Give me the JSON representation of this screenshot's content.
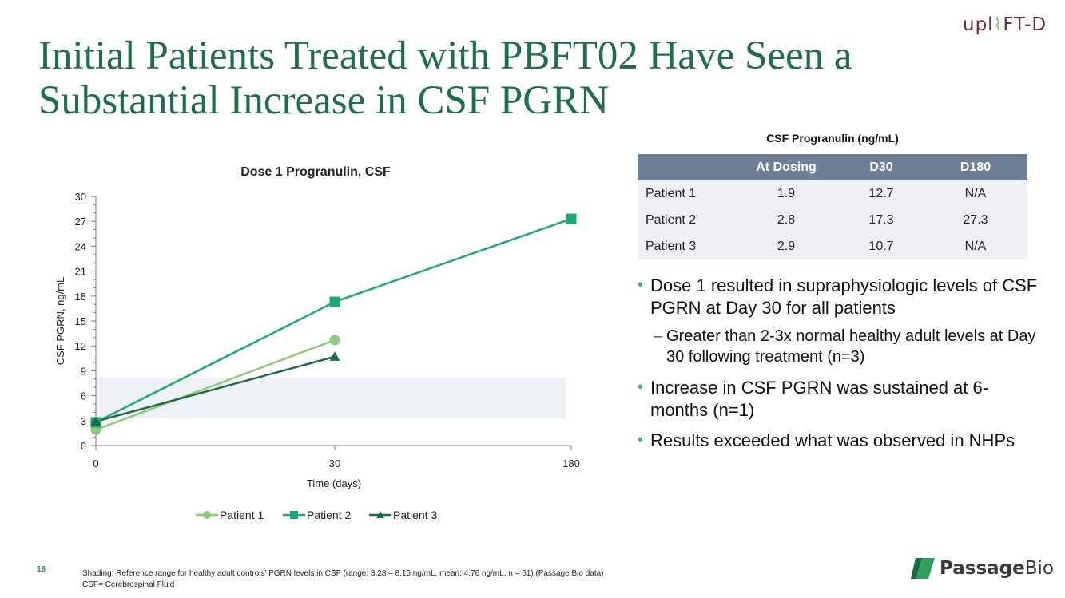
{
  "slide": {
    "title": "Initial Patients Treated with PBFT02 Have Seen a Substantial Increase in CSF PGRN",
    "brand_top": {
      "prefix": "upl",
      "suffix": "FT-D"
    },
    "page_number": "18",
    "footnotes": [
      "Shading: Reference range for healthy adult controls’ PGRN levels in CSF (range: 3.28 – 8.15 ng/mL, mean: 4.76 ng/mL, n = 61) (Passage Bio data)",
      "CSF= Cerebrospinal Fluid"
    ],
    "logo": {
      "bold": "Passage",
      "regular": "Bio"
    }
  },
  "table": {
    "caption": "CSF Progranulin (ng/mL)",
    "headers": [
      "",
      "At Dosing",
      "D30",
      "D180"
    ],
    "rows": [
      [
        "Patient 1",
        "1.9",
        "12.7",
        "N/A"
      ],
      [
        "Patient 2",
        "2.8",
        "17.3",
        "27.3"
      ],
      [
        "Patient 3",
        "2.9",
        "10.7",
        "N/A"
      ]
    ],
    "header_color": "#6e7e95",
    "row_color": "#eef0f4"
  },
  "bullets": {
    "b1": "Dose 1 resulted in supraphysiologic levels of CSF PGRN at Day 30 for all patients",
    "b1_sub": "Greater than 2-3x normal healthy adult levels at Day 30 following treatment (n=3)",
    "b2": "Increase in CSF PGRN was sustained at 6-months (n=1)",
    "b3": "Results exceeded what was observed in NHPs",
    "bullet_color": "#33b27f"
  },
  "chart_data": {
    "type": "line",
    "title": "Dose 1 Progranulin, CSF",
    "xlabel": "Time (days)",
    "ylabel": "CSF PGRN, ng/mL",
    "x": [
      "0",
      "30",
      "180"
    ],
    "yticks": [
      "0",
      "3",
      "6",
      "9",
      "12",
      "15",
      "18",
      "21",
      "24",
      "27",
      "30"
    ],
    "ylim": [
      0,
      30
    ],
    "reference_band": [
      3.28,
      8.15
    ],
    "legend_position": "bottom",
    "series": [
      {
        "name": "Patient 1",
        "values": [
          1.9,
          12.7,
          null
        ],
        "marker": "circle",
        "color": "#8cc97c"
      },
      {
        "name": "Patient 2",
        "values": [
          2.8,
          17.3,
          27.3
        ],
        "marker": "square",
        "color": "#1aaa72"
      },
      {
        "name": "Patient 3",
        "values": [
          2.9,
          10.7,
          null
        ],
        "marker": "triangle",
        "color": "#1d6a44"
      }
    ],
    "band_color": "#eef1f5"
  }
}
